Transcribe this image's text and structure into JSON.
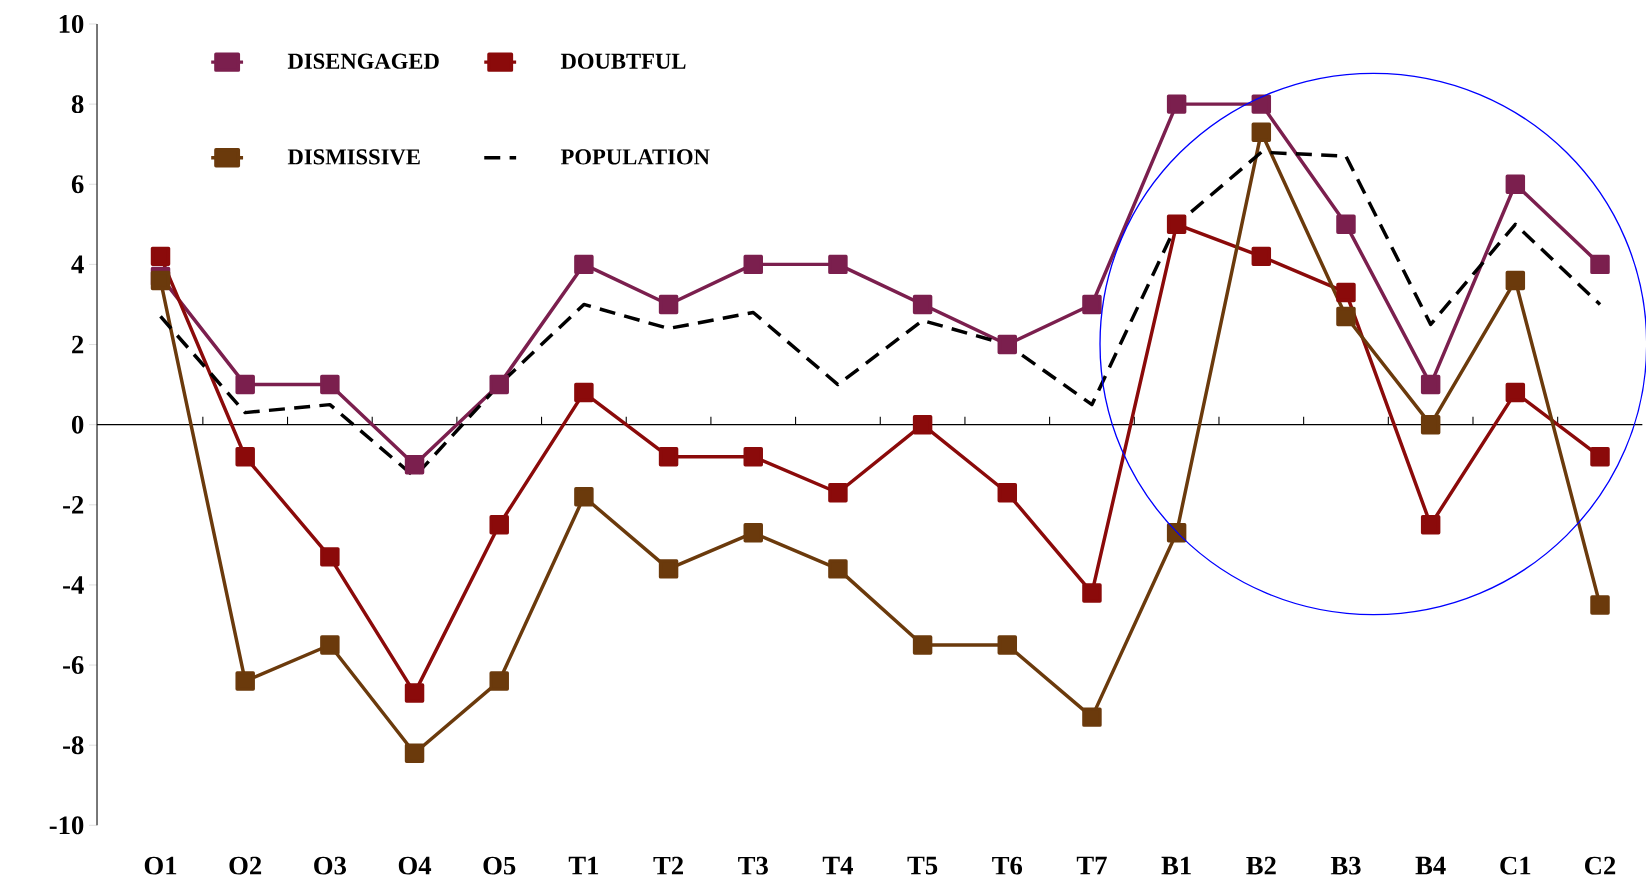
{
  "chart_data": {
    "type": "line",
    "categories": [
      "O1",
      "O2",
      "O3",
      "O4",
      "O5",
      "T1",
      "T2",
      "T3",
      "T4",
      "T5",
      "T6",
      "T7",
      "B1",
      "B2",
      "B3",
      "B4",
      "C1",
      "C2"
    ],
    "series": [
      {
        "name": "DISENGAGED",
        "color": "#7b1f4e",
        "marker": "square",
        "line_style": "solid",
        "values": [
          3.7,
          1,
          1,
          -1,
          1,
          4,
          3,
          4,
          4,
          3,
          2,
          3,
          8,
          8,
          5,
          1,
          6,
          4
        ]
      },
      {
        "name": "DOUBTFUL",
        "color": "#8b0a0a",
        "marker": "square",
        "line_style": "solid",
        "values": [
          4.2,
          -0.8,
          -3.3,
          -6.7,
          -2.5,
          0.8,
          -0.8,
          -0.8,
          -1.7,
          0,
          -1.7,
          -4.2,
          5,
          4.2,
          3.3,
          -2.5,
          0.8,
          -0.8
        ]
      },
      {
        "name": "DISMISSIVE",
        "color": "#6b3a0c",
        "marker": "square",
        "line_style": "solid",
        "values": [
          3.6,
          -6.4,
          -5.5,
          -8.2,
          -6.4,
          -1.8,
          -3.6,
          -2.7,
          -3.6,
          -5.5,
          -5.5,
          -7.3,
          -2.7,
          7.3,
          2.7,
          0,
          3.6,
          -4.5
        ]
      },
      {
        "name": "POPULATION",
        "color": "#000000",
        "marker": "none",
        "line_style": "dashed",
        "values": [
          2.7,
          0.3,
          0.5,
          -1.3,
          1,
          3,
          2.4,
          2.8,
          1,
          2.6,
          2,
          0.5,
          5,
          6.8,
          6.7,
          2.5,
          5,
          3
        ]
      }
    ],
    "ylim": [
      -10,
      10
    ],
    "yticks": [
      -10,
      -8,
      -6,
      -4,
      -2,
      0,
      2,
      4,
      6,
      8,
      10
    ],
    "legend": "top left"
  }
}
